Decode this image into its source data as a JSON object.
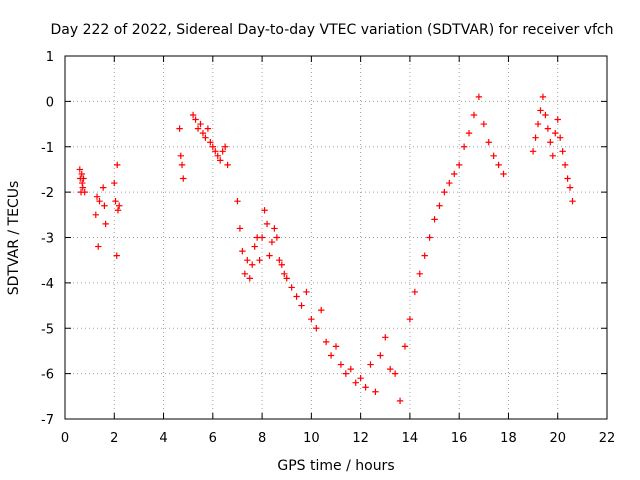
{
  "chart_data": {
    "type": "scatter",
    "title": "Day 222 of 2022, Sidereal Day-to-day VTEC variation (SDTVAR) for receiver vfch",
    "xlabel": "GPS time / hours",
    "ylabel": "SDTVAR / TECUs",
    "xlim": [
      0,
      22
    ],
    "ylim": [
      -7,
      1
    ],
    "xticks": [
      "0",
      "2",
      "4",
      "6",
      "8",
      "10",
      "12",
      "14",
      "16",
      "18",
      "20",
      "22"
    ],
    "yticks": [
      "1",
      "0",
      "-1",
      "-2",
      "-3",
      "-4",
      "-5",
      "-6",
      "-7"
    ],
    "grid": true,
    "marker": "+",
    "color": "#ff0000",
    "series": [
      {
        "name": "SDTVAR",
        "x": [
          0.6,
          0.62,
          0.65,
          0.68,
          0.7,
          0.72,
          0.75,
          0.8,
          1.25,
          1.3,
          1.35,
          1.4,
          1.55,
          1.6,
          1.65,
          2.0,
          2.05,
          2.1,
          2.12,
          2.15,
          2.2,
          4.65,
          4.7,
          4.75,
          4.8,
          5.2,
          5.3,
          5.4,
          5.5,
          5.6,
          5.7,
          5.8,
          5.9,
          6.0,
          6.1,
          6.2,
          6.3,
          6.4,
          6.5,
          6.6,
          7.0,
          7.1,
          7.2,
          7.3,
          7.4,
          7.5,
          7.6,
          7.7,
          7.8,
          7.9,
          8.0,
          8.1,
          8.2,
          8.3,
          8.4,
          8.5,
          8.6,
          8.7,
          8.8,
          8.9,
          9.0,
          9.2,
          9.4,
          9.6,
          9.8,
          10.0,
          10.2,
          10.4,
          10.6,
          10.8,
          11.0,
          11.2,
          11.4,
          11.6,
          11.8,
          12.0,
          12.2,
          12.4,
          12.6,
          12.8,
          13.0,
          13.2,
          13.4,
          13.6,
          13.8,
          14.0,
          14.2,
          14.4,
          14.6,
          14.8,
          15.0,
          15.2,
          15.4,
          15.6,
          15.8,
          16.0,
          16.2,
          16.4,
          16.6,
          16.8,
          17.0,
          17.2,
          17.4,
          17.6,
          17.8,
          19.0,
          19.1,
          19.2,
          19.3,
          19.4,
          19.5,
          19.6,
          19.7,
          19.8,
          19.9,
          20.0,
          20.1,
          20.2,
          20.3,
          20.4,
          20.5,
          20.6
        ],
        "y": [
          -1.5,
          -1.7,
          -2.0,
          -1.6,
          -1.8,
          -1.9,
          -1.7,
          -2.0,
          -2.5,
          -2.1,
          -3.2,
          -2.2,
          -1.9,
          -2.3,
          -2.7,
          -1.8,
          -2.2,
          -3.4,
          -1.4,
          -2.4,
          -2.3,
          -0.6,
          -1.2,
          -1.4,
          -1.7,
          -0.3,
          -0.4,
          -0.6,
          -0.5,
          -0.7,
          -0.8,
          -0.6,
          -0.9,
          -1.0,
          -1.1,
          -1.2,
          -1.3,
          -1.1,
          -1.0,
          -1.4,
          -2.2,
          -2.8,
          -3.3,
          -3.8,
          -3.5,
          -3.9,
          -3.6,
          -3.2,
          -3.0,
          -3.5,
          -3.0,
          -2.4,
          -2.7,
          -3.4,
          -3.1,
          -2.8,
          -3.0,
          -3.5,
          -3.6,
          -3.8,
          -3.9,
          -4.1,
          -4.3,
          -4.5,
          -4.2,
          -4.8,
          -5.0,
          -4.6,
          -5.3,
          -5.6,
          -5.4,
          -5.8,
          -6.0,
          -5.9,
          -6.2,
          -6.1,
          -6.3,
          -5.8,
          -6.4,
          -5.6,
          -5.2,
          -5.9,
          -6.0,
          -6.6,
          -5.4,
          -4.8,
          -4.2,
          -3.8,
          -3.4,
          -3.0,
          -2.6,
          -2.3,
          -2.0,
          -1.8,
          -1.6,
          -1.4,
          -1.0,
          -0.7,
          -0.3,
          0.1,
          -0.5,
          -0.9,
          -1.2,
          -1.4,
          -1.6,
          -1.1,
          -0.8,
          -0.5,
          -0.2,
          0.1,
          -0.3,
          -0.6,
          -0.9,
          -1.2,
          -0.7,
          -0.4,
          -0.8,
          -1.1,
          -1.4,
          -1.7,
          -1.9,
          -2.2
        ]
      }
    ]
  }
}
